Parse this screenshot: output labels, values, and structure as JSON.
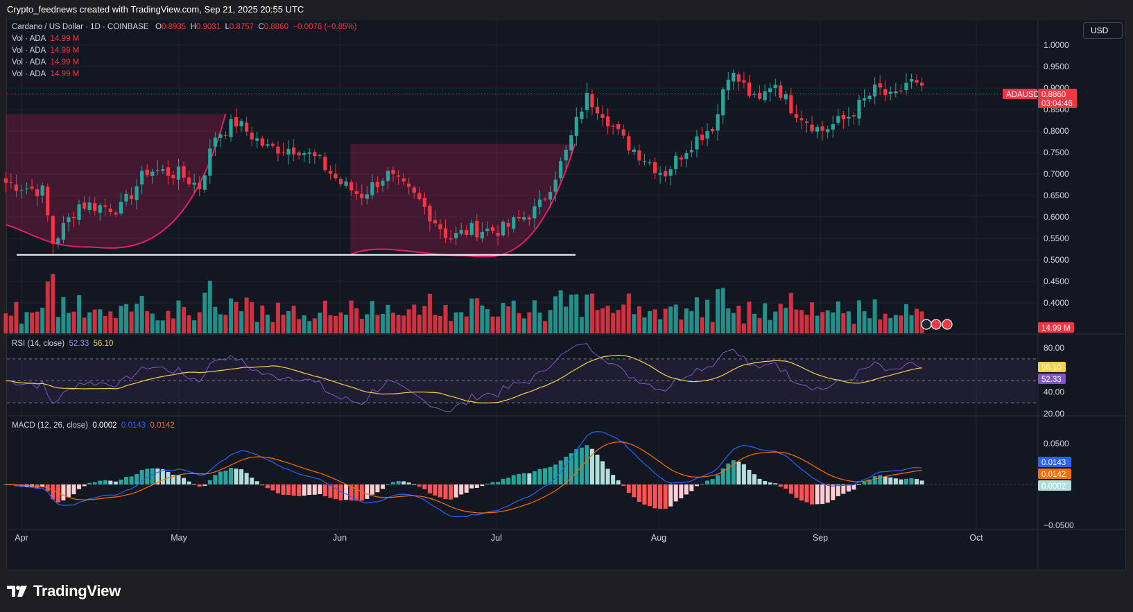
{
  "header": {
    "attribution": "Crypto_feednews created with TradingView.com, Sep 21, 2025 20:55 UTC"
  },
  "currency_button": "USD",
  "price_legend": {
    "symbol_line": "Cardano / US Dollar · 1D · COINBASE",
    "open_label": "O",
    "open": "0.8935",
    "high_label": "H",
    "high": "0.9031",
    "low_label": "L",
    "low": "0.8757",
    "close_label": "C",
    "close": "0.8860",
    "change": "−0.0076 (−0.85%)",
    "volume_lines": [
      {
        "label": "Vol · ADA",
        "value": "14.99 M"
      },
      {
        "label": "Vol · ADA",
        "value": "14.99 M"
      },
      {
        "label": "Vol · ADA",
        "value": "14.99 M"
      },
      {
        "label": "Vol · ADA",
        "value": "14.99 M"
      }
    ]
  },
  "rsi_legend": {
    "label": "RSI (14, close)",
    "rsi": "52.33",
    "rsi_ma": "56.10"
  },
  "macd_legend": {
    "label": "MACD (12, 26, close)",
    "hist": "0.0002",
    "macd": "0.0143",
    "signal": "0.0142"
  },
  "price_axis": [
    "1.0000",
    "0.9500",
    "0.9000",
    "0.8500",
    "0.8000",
    "0.7500",
    "0.7000",
    "0.6500",
    "0.6000",
    "0.5500",
    "0.5000",
    "0.4500",
    "0.4000"
  ],
  "rsi_axis": [
    "80.00",
    "40.00",
    "20.00"
  ],
  "macd_axis": [
    "0.0500",
    "−0.0500"
  ],
  "x_axis": [
    "Apr",
    "May",
    "Jun",
    "Jul",
    "Aug",
    "Sep",
    "Oct"
  ],
  "badges": {
    "symbol": "ADAUSD",
    "price": "0.8860",
    "countdown": "03:04:46",
    "volume": "14.99 M",
    "rsi_ma": "56.10",
    "rsi": "52.33",
    "macd": "0.0143",
    "signal": "0.0142",
    "hist": "0.0002"
  },
  "brand": "TradingView",
  "colors": {
    "up": "#26a69a",
    "down": "#f23645",
    "pattern": "#e91e63",
    "rsi": "#7e57c2",
    "rsi_ma": "#f5d04b",
    "macd": "#2962ff",
    "signal": "#ff6d00"
  },
  "chart_data": {
    "type": "candlestick",
    "ylim": [
      0.38,
      1.02
    ],
    "anchors": [
      {
        "date": "Mar 29",
        "close": 0.68
      },
      {
        "date": "Apr 5",
        "close": 0.66
      },
      {
        "date": "Apr 7",
        "close": 0.54
      },
      {
        "date": "Apr 12",
        "close": 0.63
      },
      {
        "date": "Apr 20",
        "close": 0.62
      },
      {
        "date": "Apr 25",
        "close": 0.71
      },
      {
        "date": "May 1",
        "close": 0.7
      },
      {
        "date": "May 5",
        "close": 0.67
      },
      {
        "date": "May 8",
        "close": 0.79
      },
      {
        "date": "May 12",
        "close": 0.82
      },
      {
        "date": "May 18",
        "close": 0.76
      },
      {
        "date": "May 24",
        "close": 0.76
      },
      {
        "date": "May 28",
        "close": 0.73
      },
      {
        "date": "Jun 1",
        "close": 0.68
      },
      {
        "date": "Jun 5",
        "close": 0.65
      },
      {
        "date": "Jun 10",
        "close": 0.7
      },
      {
        "date": "Jun 16",
        "close": 0.64
      },
      {
        "date": "Jun 22",
        "close": 0.55
      },
      {
        "date": "Jun 26",
        "close": 0.57
      },
      {
        "date": "Jul 2",
        "close": 0.57
      },
      {
        "date": "Jul 9",
        "close": 0.62
      },
      {
        "date": "Jul 14",
        "close": 0.74
      },
      {
        "date": "Jul 18",
        "close": 0.88
      },
      {
        "date": "Jul 21",
        "close": 0.85
      },
      {
        "date": "Jul 25",
        "close": 0.78
      },
      {
        "date": "Aug 2",
        "close": 0.7
      },
      {
        "date": "Aug 7",
        "close": 0.77
      },
      {
        "date": "Aug 12",
        "close": 0.82
      },
      {
        "date": "Aug 14",
        "close": 0.94
      },
      {
        "date": "Aug 17",
        "close": 0.91
      },
      {
        "date": "Aug 20",
        "close": 0.86
      },
      {
        "date": "Aug 23",
        "close": 0.92
      },
      {
        "date": "Aug 26",
        "close": 0.86
      },
      {
        "date": "Sep 1",
        "close": 0.8
      },
      {
        "date": "Sep 6",
        "close": 0.83
      },
      {
        "date": "Sep 12",
        "close": 0.9
      },
      {
        "date": "Sep 15",
        "close": 0.87
      },
      {
        "date": "Sep 18",
        "close": 0.92
      },
      {
        "date": "Sep 21",
        "close": 0.886
      }
    ],
    "support_level": 0.51,
    "patterns": [
      {
        "name": "cup 1",
        "start": "Mar 29",
        "bottom": 0.53,
        "end": "May 10",
        "top": 0.84
      },
      {
        "name": "cup 2",
        "start": "Jun 3",
        "bottom": 0.51,
        "end": "Jul 16",
        "top": 0.77
      }
    ],
    "rsi_ylim": [
      20,
      85
    ],
    "rsi_bands": [
      70,
      50,
      30
    ],
    "macd_ylim": [
      -0.06,
      0.07
    ]
  }
}
